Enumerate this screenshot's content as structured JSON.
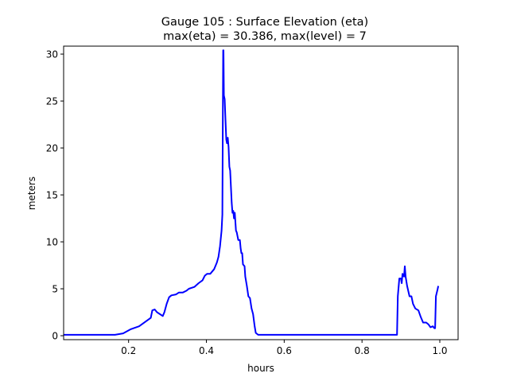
{
  "chart_data": {
    "type": "line",
    "title": "Gauge 105 : Surface Elevation (eta)",
    "subtitle": "max(eta) =  30.386,    max(level) = 7",
    "xlabel": "hours",
    "ylabel": "meters",
    "xlim": [
      0.033,
      1.047
    ],
    "ylim": [
      -0.42,
      30.85
    ],
    "xticks": [
      0.2,
      0.4,
      0.6,
      0.8,
      1.0
    ],
    "xtick_labels": [
      "0.2",
      "0.4",
      "0.6",
      "0.8",
      "1.0"
    ],
    "yticks": [
      0,
      5,
      10,
      15,
      20,
      25,
      30
    ],
    "ytick_labels": [
      "0",
      "5",
      "10",
      "15",
      "20",
      "25",
      "30"
    ],
    "grid": false,
    "series": [
      {
        "name": "eta",
        "color": "#0000ff",
        "x": [
          0.033,
          0.165,
          0.186,
          0.206,
          0.227,
          0.257,
          0.261,
          0.267,
          0.273,
          0.288,
          0.292,
          0.298,
          0.304,
          0.31,
          0.322,
          0.329,
          0.339,
          0.349,
          0.355,
          0.369,
          0.38,
          0.39,
          0.396,
          0.402,
          0.41,
          0.42,
          0.427,
          0.431,
          0.435,
          0.439,
          0.441,
          0.443,
          0.444,
          0.445,
          0.447,
          0.449,
          0.451,
          0.453,
          0.455,
          0.457,
          0.459,
          0.461,
          0.465,
          0.467,
          0.469,
          0.471,
          0.473,
          0.476,
          0.478,
          0.482,
          0.486,
          0.488,
          0.49,
          0.492,
          0.494,
          0.498,
          0.5,
          0.504,
          0.508,
          0.512,
          0.516,
          0.52,
          0.524,
          0.527,
          0.533,
          0.89,
          0.892,
          0.896,
          0.9,
          0.902,
          0.904,
          0.908,
          0.91,
          0.912,
          0.916,
          0.922,
          0.927,
          0.931,
          0.937,
          0.945,
          0.951,
          0.957,
          0.965,
          0.971,
          0.976,
          0.982,
          0.986,
          0.988,
          0.99,
          0.994,
          0.996
        ],
        "y": [
          0.1,
          0.1,
          0.25,
          0.7,
          1.0,
          1.9,
          2.7,
          2.8,
          2.5,
          2.1,
          2.5,
          3.4,
          4.1,
          4.3,
          4.4,
          4.6,
          4.6,
          4.8,
          5.0,
          5.2,
          5.6,
          5.9,
          6.4,
          6.6,
          6.6,
          7.1,
          7.8,
          8.4,
          9.5,
          11.2,
          12.9,
          30.4,
          30.4,
          25.6,
          25.2,
          23.0,
          20.9,
          20.5,
          21.1,
          20.1,
          18.0,
          17.6,
          14.2,
          13.1,
          13.3,
          12.5,
          13.1,
          11.2,
          11.0,
          10.2,
          10.2,
          9.3,
          8.8,
          8.8,
          7.6,
          7.4,
          6.3,
          5.3,
          4.2,
          4.0,
          2.9,
          2.3,
          1.0,
          0.3,
          0.1,
          0.1,
          4.2,
          6.1,
          6.1,
          5.6,
          6.6,
          6.3,
          7.4,
          6.3,
          5.3,
          4.2,
          4.2,
          3.4,
          2.9,
          2.7,
          2.0,
          1.4,
          1.4,
          1.2,
          0.9,
          1.0,
          0.8,
          0.8,
          4.2,
          4.9,
          5.3
        ]
      }
    ]
  }
}
